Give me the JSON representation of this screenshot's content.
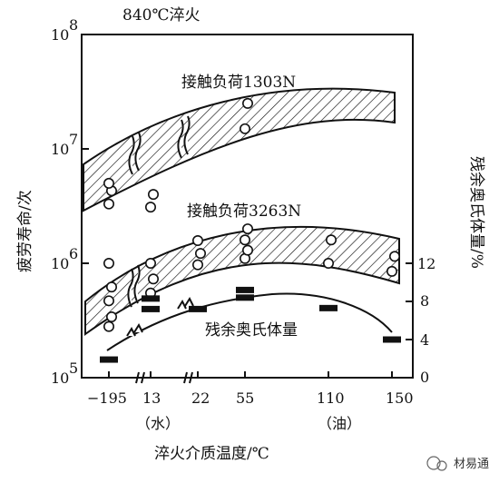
{
  "chart_data": {
    "type": "scatter",
    "title": "840℃淬火",
    "xlabel": "淬火介质温度/℃",
    "ylabel_left": "疲劳寿命/次",
    "ylabel_right": "残余奥氏体量/%",
    "x_categories": [
      "−195",
      "13",
      "22",
      "55",
      "110",
      "150"
    ],
    "x_sub_labels": [
      {
        "text": "（水）",
        "under": "13"
      },
      {
        "text": "（油）",
        "under": "110"
      }
    ],
    "y_left_scale": "log",
    "y_left_ticks": [
      {
        "base": "10",
        "exp": "5"
      },
      {
        "base": "10",
        "exp": "6"
      },
      {
        "base": "10",
        "exp": "7"
      },
      {
        "base": "10",
        "exp": "8"
      }
    ],
    "y_left_range": [
      100000,
      100000000
    ],
    "y_right_ticks": [
      "0",
      "4",
      "8",
      "12"
    ],
    "y_right_range": [
      0,
      12
    ],
    "series": [
      {
        "name": "接触负荷1303N",
        "kind": "band",
        "points": [
          {
            "x": "−195",
            "y": 3300000
          },
          {
            "x": "−195",
            "y": 4300000
          },
          {
            "x": "−195",
            "y": 5000000
          },
          {
            "x": "13",
            "y": 3100000
          },
          {
            "x": "13",
            "y": 4000000
          },
          {
            "x": "55",
            "y": 15000000
          },
          {
            "x": "55",
            "y": 25000000
          }
        ]
      },
      {
        "name": "接触负荷3263N",
        "kind": "band",
        "points": [
          {
            "x": "−195",
            "y": 280000
          },
          {
            "x": "−195",
            "y": 340000
          },
          {
            "x": "−195",
            "y": 470000
          },
          {
            "x": "−195",
            "y": 620000
          },
          {
            "x": "−195",
            "y": 1000000
          },
          {
            "x": "13",
            "y": 550000
          },
          {
            "x": "13",
            "y": 730000
          },
          {
            "x": "13",
            "y": 1000000
          },
          {
            "x": "22",
            "y": 970000
          },
          {
            "x": "22",
            "y": 1220000
          },
          {
            "x": "22",
            "y": 1580000
          },
          {
            "x": "55",
            "y": 1100000
          },
          {
            "x": "55",
            "y": 1300000
          },
          {
            "x": "55",
            "y": 1600000
          },
          {
            "x": "55",
            "y": 2000000
          },
          {
            "x": "110",
            "y": 1000000
          },
          {
            "x": "110",
            "y": 1600000
          },
          {
            "x": "150",
            "y": 850000
          },
          {
            "x": "150",
            "y": 1150000
          }
        ]
      },
      {
        "name": "残余奥氏体量",
        "kind": "line",
        "axis": "right",
        "points": [
          {
            "x": "−195",
            "y": 1.9
          },
          {
            "x": "13",
            "y": 7.2
          },
          {
            "x": "13",
            "y": 8.3
          },
          {
            "x": "22",
            "y": 7.2
          },
          {
            "x": "55",
            "y": 8.4
          },
          {
            "x": "55",
            "y": 9.2
          },
          {
            "x": "110",
            "y": 7.3
          },
          {
            "x": "150",
            "y": 4.0
          }
        ]
      }
    ]
  },
  "watermark": "材易通"
}
